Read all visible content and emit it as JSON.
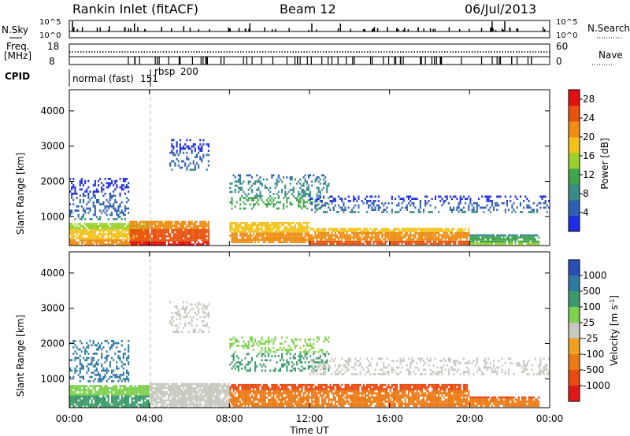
{
  "header": {
    "station": "Rankin Inlet (fitACF)",
    "beam": "Beam 12",
    "date": "06/Jul/2013"
  },
  "status_panels": {
    "nsky_label": "N.Sky",
    "nsearch_label": "N.Search",
    "nsky_ticks": [
      "10^5",
      "10^0"
    ],
    "nsearch_ticks": [
      "10^5",
      "10^0"
    ],
    "freq_label_1": "Freq.",
    "freq_label_2": "[MHz]",
    "freq_ticks": [
      "18",
      "8"
    ],
    "nave_label": "Nave",
    "nave_ticks": [
      "60",
      "0"
    ],
    "cpid_label": "CPID",
    "cpid_modes": [
      {
        "name": "normal (fast)",
        "id": "151",
        "start_hour": 0
      },
      {
        "name": "rbsp",
        "id": "200",
        "start_hour": 4
      }
    ]
  },
  "colors": {
    "power_scale": [
      "#1d2de6",
      "#2f5fb0",
      "#3a8a88",
      "#3fa44a",
      "#9bd12b",
      "#f2c21b",
      "#ee8c13",
      "#e8520d",
      "#e01010"
    ],
    "velocity_scale": [
      "#2a4fb4",
      "#2f7aa2",
      "#3c9a6a",
      "#7ed04e",
      "#c8c8c0",
      "#f0a020",
      "#ec7a14",
      "#e84a10",
      "#e01818"
    ]
  },
  "chart_data": [
    {
      "type": "heatmap",
      "name": "power",
      "x_label": "Time UT",
      "y_label": "Slant Range [km]",
      "x_ticks": [
        "00:00",
        "04:00",
        "08:00",
        "12:00",
        "16:00",
        "20:00",
        "00:00"
      ],
      "x_range_hours": [
        0,
        24
      ],
      "y_ticks": [
        1000,
        2000,
        3000,
        4000
      ],
      "y_range_km": [
        180,
        4600
      ],
      "colorbar_label": "Power [dB]",
      "colorbar_ticks": [
        4,
        8,
        12,
        16,
        20,
        24,
        28
      ],
      "colorbar_range": [
        0,
        30
      ],
      "bands": [
        {
          "t0": 0.0,
          "t1": 4.0,
          "r0": 180,
          "r1": 820,
          "v": 22
        },
        {
          "t0": 3.0,
          "t1": 7.0,
          "r0": 180,
          "r1": 880,
          "v": 29
        },
        {
          "t0": 8.0,
          "t1": 12.0,
          "r0": 250,
          "r1": 850,
          "v": 24
        },
        {
          "t0": 12.0,
          "t1": 20.0,
          "r0": 200,
          "r1": 680,
          "v": 26
        },
        {
          "t0": 20.0,
          "t1": 23.5,
          "r0": 200,
          "r1": 500,
          "v": 14
        },
        {
          "t0": 0.0,
          "t1": 3.0,
          "r0": 900,
          "r1": 2100,
          "v": 6
        },
        {
          "t0": 8.0,
          "t1": 13.0,
          "r0": 1200,
          "r1": 2200,
          "v": 12
        },
        {
          "t0": 12.0,
          "t1": 24.0,
          "r0": 1100,
          "r1": 1600,
          "v": 6
        },
        {
          "t0": 5.0,
          "t1": 7.0,
          "r0": 2300,
          "r1": 3200,
          "v": 6
        }
      ]
    },
    {
      "type": "heatmap",
      "name": "velocity",
      "x_label": "Time UT",
      "y_label": "Slant Range [km]",
      "x_ticks": [
        "00:00",
        "04:00",
        "08:00",
        "12:00",
        "16:00",
        "20:00",
        "00:00"
      ],
      "x_range_hours": [
        0,
        24
      ],
      "y_ticks": [
        1000,
        2000,
        3000,
        4000
      ],
      "y_range_km": [
        180,
        4600
      ],
      "colorbar_label": "Velocity [m s^-1]",
      "colorbar_ticks": [
        "1000",
        "500",
        "100",
        "25",
        "-25",
        "-100",
        "-500",
        "-1000"
      ],
      "bands": [
        {
          "t0": 0.0,
          "t1": 4.0,
          "r0": 180,
          "r1": 820,
          "v": 100
        },
        {
          "t0": 4.0,
          "t1": 8.0,
          "r0": 180,
          "r1": 880,
          "v": 0
        },
        {
          "t0": 8.0,
          "t1": 20.0,
          "r0": 200,
          "r1": 850,
          "v": -100
        },
        {
          "t0": 20.0,
          "t1": 23.5,
          "r0": 200,
          "r1": 500,
          "v": -100
        },
        {
          "t0": 0.0,
          "t1": 3.0,
          "r0": 900,
          "r1": 2100,
          "v": 500
        },
        {
          "t0": 8.0,
          "t1": 13.0,
          "r0": 1200,
          "r1": 2200,
          "v": 100
        },
        {
          "t0": 12.0,
          "t1": 24.0,
          "r0": 1100,
          "r1": 1600,
          "v": 0
        },
        {
          "t0": 5.0,
          "t1": 7.0,
          "r0": 2300,
          "r1": 3200,
          "v": 0
        }
      ]
    }
  ]
}
